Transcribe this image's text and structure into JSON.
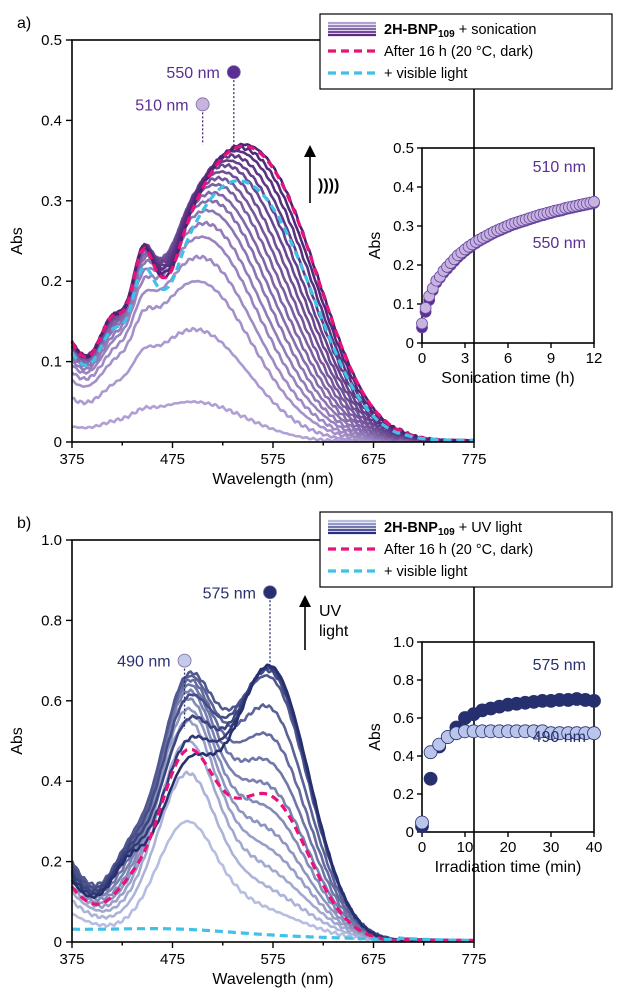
{
  "chart_data": [
    {
      "panel": "a)",
      "type": "line",
      "xlabel": "Wavelength (nm)",
      "ylabel": "Abs",
      "xlim": [
        375,
        775
      ],
      "ylim": [
        0,
        0.5
      ],
      "xticks": [
        "375",
        "475",
        "575",
        "675",
        "775"
      ],
      "yticks": [
        "0",
        "0.1",
        "0.2",
        "0.3",
        "0.4",
        "0.5"
      ],
      "legend_position": "top-right",
      "legend": [
        {
          "bold": "2H-BNP",
          "sub": "109",
          "rest": " + sonication",
          "style": "gradient",
          "color": "#5a2a80"
        },
        {
          "text": "After 16 h (20 °C, dark)",
          "style": "dashed",
          "color": "#e8127a"
        },
        {
          "text": "+ visible light",
          "style": "dashed",
          "color": "#3fc1e8"
        }
      ],
      "color_light": "#b1a0d6",
      "color_dark": "#4c2374",
      "spectra_peak_abs": [
        0.05,
        0.14,
        0.2,
        0.23,
        0.255,
        0.272,
        0.288,
        0.3,
        0.31,
        0.32,
        0.328,
        0.336,
        0.344,
        0.35,
        0.356,
        0.362,
        0.366,
        0.37
      ],
      "dashed_peaks": [
        {
          "name": "After 16 h (20 °C, dark)",
          "peak": 0.368
        },
        {
          "name": "+ visible light",
          "peak": 0.325
        }
      ],
      "markers": [
        {
          "label": "550 nm",
          "x": 536,
          "y": 0.46,
          "line_to": 0.36,
          "color": "#5a2e92"
        },
        {
          "label": "510 nm",
          "x": 505,
          "y": 0.42,
          "line_to": 0.37,
          "color": "#c7b3e0"
        }
      ],
      "inset": {
        "xlabel": "Sonication time (h)",
        "ylabel": "Abs",
        "xlim": [
          0,
          12
        ],
        "ylim": [
          0,
          0.5
        ],
        "xticks": [
          "0",
          "3",
          "6",
          "9",
          "12"
        ],
        "yticks": [
          "0",
          "0.1",
          "0.2",
          "0.3",
          "0.4",
          "0.5"
        ],
        "series": [
          {
            "name": "510 nm",
            "color": "#c7b3e0",
            "x": [
              0.0,
              0.25,
              0.5,
              0.75,
              1.0,
              1.25,
              1.5,
              1.75,
              2.0,
              2.25,
              2.5,
              2.75,
              3.0,
              3.25,
              3.5,
              3.75,
              4.0,
              4.25,
              4.5,
              4.75,
              5.0,
              5.25,
              5.5,
              5.75,
              6.0,
              6.25,
              6.5,
              6.75,
              7.0,
              7.25,
              7.5,
              7.75,
              8.0,
              8.25,
              8.5,
              8.75,
              9.0,
              9.25,
              9.5,
              9.75,
              10.0,
              10.25,
              10.5,
              10.75,
              11.0,
              11.25,
              11.5,
              11.75,
              12.0
            ],
            "y": [
              0.05,
              0.09,
              0.12,
              0.14,
              0.16,
              0.17,
              0.185,
              0.195,
              0.205,
              0.215,
              0.225,
              0.232,
              0.24,
              0.247,
              0.253,
              0.259,
              0.265,
              0.27,
              0.275,
              0.28,
              0.285,
              0.289,
              0.293,
              0.297,
              0.301,
              0.305,
              0.308,
              0.311,
              0.314,
              0.317,
              0.32,
              0.323,
              0.326,
              0.329,
              0.331,
              0.334,
              0.336,
              0.339,
              0.341,
              0.343,
              0.346,
              0.348,
              0.35,
              0.352,
              0.354,
              0.356,
              0.358,
              0.36,
              0.362
            ]
          },
          {
            "name": "550 nm",
            "color": "#5a2e92",
            "x": [
              0.0,
              0.25,
              0.5,
              0.75,
              1.0,
              1.25,
              1.5,
              1.75,
              2.0,
              2.25,
              2.5,
              2.75,
              3.0,
              3.25,
              3.5,
              3.75,
              4.0,
              4.25,
              4.5,
              4.75,
              5.0,
              5.25,
              5.5,
              5.75,
              6.0,
              6.25,
              6.5,
              6.75,
              7.0,
              7.25,
              7.5,
              7.75,
              8.0,
              8.25,
              8.5,
              8.75,
              9.0,
              9.25,
              9.5,
              9.75,
              10.0,
              10.25,
              10.5,
              10.75,
              11.0,
              11.25,
              11.5,
              11.75,
              12.0
            ],
            "y": [
              0.04,
              0.08,
              0.11,
              0.135,
              0.155,
              0.167,
              0.18,
              0.19,
              0.2,
              0.21,
              0.22,
              0.228,
              0.236,
              0.243,
              0.25,
              0.256,
              0.262,
              0.267,
              0.272,
              0.277,
              0.282,
              0.286,
              0.29,
              0.294,
              0.298,
              0.302,
              0.305,
              0.308,
              0.311,
              0.314,
              0.317,
              0.32,
              0.323,
              0.326,
              0.328,
              0.331,
              0.333,
              0.336,
              0.338,
              0.34,
              0.343,
              0.345,
              0.347,
              0.349,
              0.351,
              0.353,
              0.355,
              0.357,
              0.359
            ]
          }
        ]
      }
    },
    {
      "panel": "b)",
      "type": "line",
      "xlabel": "Wavelength (nm)",
      "ylabel": "Abs",
      "xlim": [
        375,
        775
      ],
      "ylim": [
        0,
        1.0
      ],
      "xticks": [
        "375",
        "475",
        "575",
        "675",
        "775"
      ],
      "yticks": [
        "0",
        "0.2",
        "0.4",
        "0.6",
        "0.8",
        "1.0"
      ],
      "legend_position": "top-right",
      "legend": [
        {
          "bold": "2H-BNP",
          "sub": "109",
          "rest": " + UV light",
          "style": "gradient",
          "color": "#2b2f7f"
        },
        {
          "text": "After 16 h (20 °C, dark)",
          "style": "dashed",
          "color": "#e8127a"
        },
        {
          "text": "+ visible light",
          "style": "dashed",
          "color": "#3fc1e8"
        }
      ],
      "color_light": "#b6bde0",
      "color_dark": "#27306f",
      "spectra_peak_abs": [
        0.3,
        0.42,
        0.5,
        0.55,
        0.58,
        0.605,
        0.625,
        0.64,
        0.652,
        0.662,
        0.67,
        0.676,
        0.681,
        0.685,
        0.688
      ],
      "dashed_peaks": [
        {
          "name": "After 16 h (20 °C, dark)",
          "peak": 0.48
        },
        {
          "name": "+ visible light",
          "peak": 0.04
        }
      ],
      "markers": [
        {
          "label": "575 nm",
          "x": 572,
          "y": 0.87,
          "line_to": 0.69,
          "color": "#27306f"
        },
        {
          "label": "490 nm",
          "x": 487,
          "y": 0.7,
          "line_to": 0.53,
          "color": "#c4cbea"
        }
      ],
      "inset": {
        "xlabel": "Irradiation time (min)",
        "ylabel": "Abs",
        "xlim": [
          0,
          40
        ],
        "ylim": [
          0,
          1.0
        ],
        "xticks": [
          "0",
          "10",
          "20",
          "30",
          "40"
        ],
        "yticks": [
          "0",
          "0.2",
          "0.4",
          "0.6",
          "0.8",
          "1.0"
        ],
        "series": [
          {
            "name": "575 nm",
            "color": "#27306f",
            "x": [
              0,
              2,
              4,
              6,
              8,
              10,
              12,
              14,
              16,
              18,
              20,
              22,
              24,
              26,
              28,
              30,
              32,
              34,
              36,
              38,
              40
            ],
            "y": [
              0.03,
              0.28,
              0.45,
              0.5,
              0.55,
              0.6,
              0.62,
              0.64,
              0.65,
              0.66,
              0.67,
              0.675,
              0.68,
              0.685,
              0.69,
              0.69,
              0.695,
              0.695,
              0.7,
              0.695,
              0.69
            ]
          },
          {
            "name": "490 nm",
            "color": "#b9c5ea",
            "x": [
              0,
              2,
              4,
              6,
              8,
              10,
              12,
              14,
              16,
              18,
              20,
              22,
              24,
              26,
              28,
              30,
              32,
              34,
              36,
              38,
              40
            ],
            "y": [
              0.05,
              0.42,
              0.46,
              0.5,
              0.52,
              0.53,
              0.53,
              0.53,
              0.53,
              0.53,
              0.53,
              0.53,
              0.53,
              0.53,
              0.53,
              0.52,
              0.52,
              0.52,
              0.52,
              0.52,
              0.52
            ]
          }
        ]
      }
    }
  ],
  "annotations": {
    "sonic_symbol": "))))",
    "uv_line1": "UV",
    "uv_line2": "light"
  }
}
